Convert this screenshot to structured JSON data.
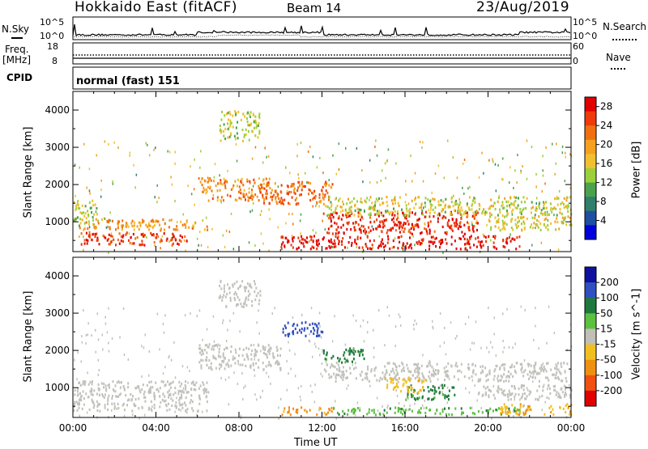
{
  "header": {
    "station": "Hokkaido East (fitACF)",
    "beam": "Beam 14",
    "date": "23/Aug/2019"
  },
  "noise_panel": {
    "left_label": "N.Sky",
    "right_label": "N.Search",
    "left_ticks": [
      "10^5",
      "10^0"
    ],
    "right_ticks": [
      "10^5",
      "10^0"
    ]
  },
  "freq_panel": {
    "left_label_line1": "Freq.",
    "left_label_line2": "[MHz]",
    "right_label": "Nave",
    "left_ticks": [
      "18",
      "8"
    ],
    "right_ticks": [
      "60",
      "0"
    ]
  },
  "cpid_panel": {
    "label": "CPID",
    "mode": "normal (fast) 151"
  },
  "colors": {
    "power": [
      "#0000dd",
      "#1f4fa0",
      "#2f7f6a",
      "#4ca24c",
      "#9bd03a",
      "#f0c030",
      "#f4a020",
      "#f07010",
      "#f03a0a",
      "#e00000"
    ],
    "velocity": [
      "#1010a0",
      "#3050c0",
      "#1e7a3c",
      "#5cc040",
      "#c0c0b8",
      "#f0c020",
      "#f09010",
      "#f05010",
      "#e00000"
    ],
    "ground_scatter": "#c2c2bc"
  },
  "chart_data": [
    {
      "type": "heatmap",
      "title": "",
      "xlabel": "Time UT",
      "ylabel": "Slant Range [km]",
      "x_ticks": [
        "00:00",
        "04:00",
        "08:00",
        "12:00",
        "16:00",
        "20:00",
        "00:00"
      ],
      "y_ticks": [
        "1000",
        "2000",
        "3000",
        "4000"
      ],
      "ylim": [
        200,
        4500
      ],
      "colorbar": {
        "label": "Power [dB]",
        "ticks": [
          "4",
          "8",
          "12",
          "16",
          "20",
          "24",
          "28"
        ],
        "range": [
          0,
          30
        ]
      },
      "regions": [
        {
          "x": [
            0.0,
            1.2
          ],
          "y": [
            900,
            1600
          ],
          "value": 14
        },
        {
          "x": [
            0.3,
            5.5
          ],
          "y": [
            400,
            750
          ],
          "value": 26
        },
        {
          "x": [
            0.3,
            6.5
          ],
          "y": [
            800,
            1100
          ],
          "value": 20
        },
        {
          "x": [
            6.0,
            9.8
          ],
          "y": [
            1600,
            2200
          ],
          "value": 21
        },
        {
          "x": [
            7.0,
            9.0
          ],
          "y": [
            3200,
            4000
          ],
          "value": 14
        },
        {
          "x": [
            9.0,
            12.5
          ],
          "y": [
            1500,
            2100
          ],
          "value": 23
        },
        {
          "x": [
            10.0,
            21.5
          ],
          "y": [
            300,
            650
          ],
          "value": 28
        },
        {
          "x": [
            12.0,
            19.5
          ],
          "y": [
            700,
            1300
          ],
          "value": 27
        },
        {
          "x": [
            12.0,
            24.0
          ],
          "y": [
            1200,
            1700
          ],
          "value": 15
        },
        {
          "x": [
            20.0,
            24.0
          ],
          "y": [
            800,
            1200
          ],
          "value": 16
        }
      ]
    },
    {
      "type": "heatmap",
      "title": "",
      "xlabel": "Time UT",
      "ylabel": "Slant Range [km]",
      "x_ticks": [
        "00:00",
        "04:00",
        "08:00",
        "12:00",
        "16:00",
        "20:00",
        "00:00"
      ],
      "y_ticks": [
        "1000",
        "2000",
        "3000",
        "4000"
      ],
      "ylim": [
        200,
        4500
      ],
      "colorbar": {
        "label": "Velocity [m s^-1]",
        "ticks": [
          "200",
          "100",
          "50",
          "15",
          "-15",
          "-50",
          "-100",
          "-200"
        ],
        "range": [
          -250,
          250
        ]
      },
      "regions": [
        {
          "x": [
            0.0,
            6.5
          ],
          "y": [
            400,
            1200
          ],
          "value": 0,
          "ground_scatter": true
        },
        {
          "x": [
            6.0,
            10.0
          ],
          "y": [
            1500,
            2200
          ],
          "value": 0,
          "ground_scatter": true
        },
        {
          "x": [
            7.0,
            9.0
          ],
          "y": [
            3200,
            3900
          ],
          "value": 5,
          "ground_scatter": true
        },
        {
          "x": [
            10.0,
            12.0
          ],
          "y": [
            2400,
            2800
          ],
          "value": 150
        },
        {
          "x": [
            10.0,
            12.5
          ],
          "y": [
            300,
            500
          ],
          "value": -60
        },
        {
          "x": [
            12.0,
            14.0
          ],
          "y": [
            1700,
            2100
          ],
          "value": 60
        },
        {
          "x": [
            12.5,
            21.5
          ],
          "y": [
            300,
            500
          ],
          "value": 40
        },
        {
          "x": [
            12.0,
            24.0
          ],
          "y": [
            1200,
            1700
          ],
          "value": 0,
          "ground_scatter": true
        },
        {
          "x": [
            16.0,
            18.5
          ],
          "y": [
            700,
            1100
          ],
          "value": 60
        },
        {
          "x": [
            15.0,
            17.0
          ],
          "y": [
            900,
            1300
          ],
          "value": -40
        },
        {
          "x": [
            19.5,
            24.0
          ],
          "y": [
            700,
            1100
          ],
          "value": 0,
          "ground_scatter": true
        },
        {
          "x": [
            20.5,
            24.0
          ],
          "y": [
            300,
            600
          ],
          "value": -45
        }
      ]
    }
  ]
}
